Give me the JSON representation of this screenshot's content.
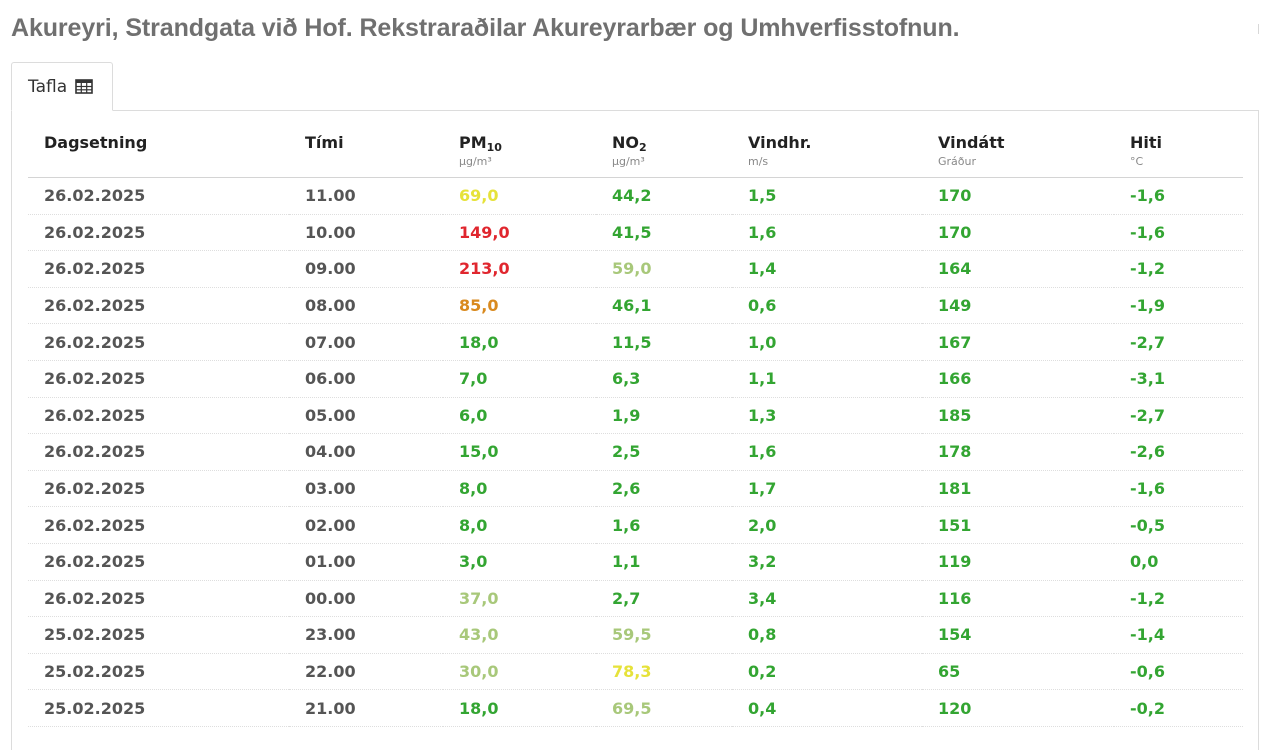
{
  "page": {
    "title": "Akureyri, Strandgata við Hof. Rekstraraðilar Akureyrarbær og Umhverfisstofnun."
  },
  "tab": {
    "label": "Tafla",
    "icon": "table-icon"
  },
  "table": {
    "columns": [
      {
        "key": "date",
        "label": "Dagsetning",
        "unit": ""
      },
      {
        "key": "time",
        "label": "Tími",
        "unit": ""
      },
      {
        "key": "pm10",
        "label": "PM",
        "sub": "10",
        "unit": "µg/m³"
      },
      {
        "key": "no2",
        "label": "NO",
        "sub": "2",
        "unit": "µg/m³"
      },
      {
        "key": "wind_speed",
        "label": "Vindhr.",
        "unit": "m/s"
      },
      {
        "key": "wind_dir",
        "label": "Vindátt",
        "unit": "Gráður"
      },
      {
        "key": "temp",
        "label": "Hiti",
        "unit": "°C"
      }
    ],
    "status_colors": {
      "green": "#33a532",
      "light_green": "#a8c87a",
      "yellow": "#e6e23a",
      "orange": "#d98a1f",
      "red": "#e0262e"
    },
    "rows": [
      {
        "date": "26.02.2025",
        "time": "11.00",
        "pm10": "69,0",
        "pm10_status": "yellow",
        "no2": "44,2",
        "no2_status": "green",
        "wind_speed": "1,5",
        "wind_dir": "170",
        "temp": "-1,6"
      },
      {
        "date": "26.02.2025",
        "time": "10.00",
        "pm10": "149,0",
        "pm10_status": "red",
        "no2": "41,5",
        "no2_status": "green",
        "wind_speed": "1,6",
        "wind_dir": "170",
        "temp": "-1,6"
      },
      {
        "date": "26.02.2025",
        "time": "09.00",
        "pm10": "213,0",
        "pm10_status": "red",
        "no2": "59,0",
        "no2_status": "light_green",
        "wind_speed": "1,4",
        "wind_dir": "164",
        "temp": "-1,2"
      },
      {
        "date": "26.02.2025",
        "time": "08.00",
        "pm10": "85,0",
        "pm10_status": "orange",
        "no2": "46,1",
        "no2_status": "green",
        "wind_speed": "0,6",
        "wind_dir": "149",
        "temp": "-1,9"
      },
      {
        "date": "26.02.2025",
        "time": "07.00",
        "pm10": "18,0",
        "pm10_status": "green",
        "no2": "11,5",
        "no2_status": "green",
        "wind_speed": "1,0",
        "wind_dir": "167",
        "temp": "-2,7"
      },
      {
        "date": "26.02.2025",
        "time": "06.00",
        "pm10": "7,0",
        "pm10_status": "green",
        "no2": "6,3",
        "no2_status": "green",
        "wind_speed": "1,1",
        "wind_dir": "166",
        "temp": "-3,1"
      },
      {
        "date": "26.02.2025",
        "time": "05.00",
        "pm10": "6,0",
        "pm10_status": "green",
        "no2": "1,9",
        "no2_status": "green",
        "wind_speed": "1,3",
        "wind_dir": "185",
        "temp": "-2,7"
      },
      {
        "date": "26.02.2025",
        "time": "04.00",
        "pm10": "15,0",
        "pm10_status": "green",
        "no2": "2,5",
        "no2_status": "green",
        "wind_speed": "1,6",
        "wind_dir": "178",
        "temp": "-2,6"
      },
      {
        "date": "26.02.2025",
        "time": "03.00",
        "pm10": "8,0",
        "pm10_status": "green",
        "no2": "2,6",
        "no2_status": "green",
        "wind_speed": "1,7",
        "wind_dir": "181",
        "temp": "-1,6"
      },
      {
        "date": "26.02.2025",
        "time": "02.00",
        "pm10": "8,0",
        "pm10_status": "green",
        "no2": "1,6",
        "no2_status": "green",
        "wind_speed": "2,0",
        "wind_dir": "151",
        "temp": "-0,5"
      },
      {
        "date": "26.02.2025",
        "time": "01.00",
        "pm10": "3,0",
        "pm10_status": "green",
        "no2": "1,1",
        "no2_status": "green",
        "wind_speed": "3,2",
        "wind_dir": "119",
        "temp": "0,0"
      },
      {
        "date": "26.02.2025",
        "time": "00.00",
        "pm10": "37,0",
        "pm10_status": "light_green",
        "no2": "2,7",
        "no2_status": "green",
        "wind_speed": "3,4",
        "wind_dir": "116",
        "temp": "-1,2"
      },
      {
        "date": "25.02.2025",
        "time": "23.00",
        "pm10": "43,0",
        "pm10_status": "light_green",
        "no2": "59,5",
        "no2_status": "light_green",
        "wind_speed": "0,8",
        "wind_dir": "154",
        "temp": "-1,4"
      },
      {
        "date": "25.02.2025",
        "time": "22.00",
        "pm10": "30,0",
        "pm10_status": "light_green",
        "no2": "78,3",
        "no2_status": "yellow",
        "wind_speed": "0,2",
        "wind_dir": "65",
        "temp": "-0,6"
      },
      {
        "date": "25.02.2025",
        "time": "21.00",
        "pm10": "18,0",
        "pm10_status": "green",
        "no2": "69,5",
        "no2_status": "light_green",
        "wind_speed": "0,4",
        "wind_dir": "120",
        "temp": "-0,2"
      }
    ]
  }
}
